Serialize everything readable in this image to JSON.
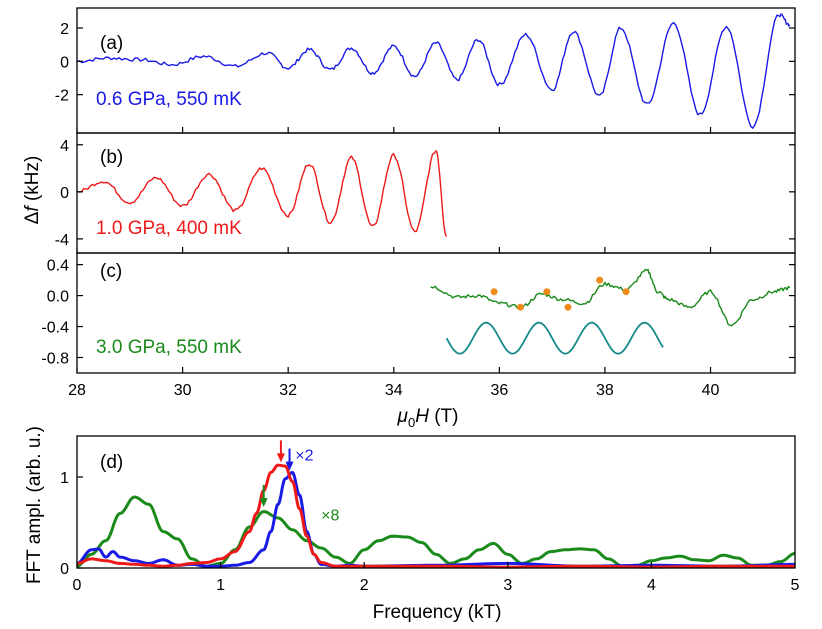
{
  "chart_data": [
    {
      "type": "line",
      "panel_label": "(a)",
      "annotation": "0.6 GPa, 550 mK",
      "color": "#1a1ae6",
      "xlim": [
        28,
        41.6
      ],
      "ylim": [
        -4.3,
        3.2
      ],
      "yticks": [
        2,
        0,
        -2
      ],
      "ytick_labels": [
        "2",
        "0",
        "-2"
      ],
      "series": [
        {
          "x": [
            28.0,
            28.6,
            29.2,
            29.8,
            30.4,
            31.0,
            31.6,
            32.0,
            32.4,
            32.8,
            33.2,
            33.6,
            34.0,
            34.4,
            34.8,
            35.2,
            35.6,
            36.0,
            36.5,
            37.0,
            37.4,
            37.9,
            38.3,
            38.8,
            39.3,
            39.8,
            40.3,
            40.8,
            41.3,
            41.5
          ],
          "y": [
            0.0,
            0.2,
            0.1,
            -0.2,
            0.3,
            -0.3,
            0.5,
            -0.4,
            0.7,
            -0.5,
            0.8,
            -0.7,
            0.9,
            -0.9,
            1.1,
            -1.1,
            1.3,
            -1.4,
            1.6,
            -1.7,
            1.8,
            -2.1,
            2.0,
            -2.6,
            2.3,
            -3.2,
            2.1,
            -3.9,
            2.8,
            2.2
          ]
        }
      ]
    },
    {
      "type": "line",
      "panel_label": "(b)",
      "annotation": "1.0 GPa, 400 mK",
      "color": "#ee1a1a",
      "xlim": [
        28,
        41.6
      ],
      "ylim": [
        -5.2,
        5.0
      ],
      "yticks": [
        4,
        0,
        -4
      ],
      "ytick_labels": [
        "4",
        "0",
        "-4"
      ],
      "series": [
        {
          "x": [
            28.0,
            28.5,
            29.0,
            29.5,
            30.0,
            30.5,
            31.0,
            31.5,
            32.0,
            32.4,
            32.8,
            33.2,
            33.6,
            34.0,
            34.4,
            34.8,
            35.0
          ],
          "y": [
            0.0,
            0.9,
            -0.9,
            1.2,
            -1.2,
            1.5,
            -1.6,
            2.0,
            -2.0,
            2.4,
            -2.6,
            2.9,
            -3.0,
            3.1,
            -3.4,
            3.5,
            -3.8
          ]
        }
      ]
    },
    {
      "type": "line",
      "panel_label": "(c)",
      "annotation": "3.0 GPa, 550 mK",
      "color": "#1a8a1a",
      "xlim": [
        28,
        41.6
      ],
      "ylim": [
        -1.0,
        0.55
      ],
      "yticks": [
        0.4,
        0.0,
        -0.4,
        -0.8
      ],
      "ytick_labels": [
        "0.4",
        "0.0",
        "-0.4",
        "-0.8"
      ],
      "xticks": [
        28,
        30,
        32,
        34,
        36,
        38,
        40
      ],
      "xtick_labels": [
        "28",
        "30",
        "32",
        "34",
        "36",
        "38",
        "40"
      ],
      "series": [
        {
          "x": [
            34.7,
            35.2,
            35.6,
            36.0,
            36.4,
            36.8,
            37.2,
            37.6,
            38.0,
            38.4,
            38.8,
            39.0,
            39.2,
            39.6,
            40.0,
            40.4,
            40.8,
            41.2,
            41.5
          ],
          "y": [
            0.12,
            -0.02,
            0.0,
            -0.1,
            -0.15,
            0.02,
            -0.05,
            -0.1,
            0.15,
            0.08,
            0.32,
            0.05,
            -0.05,
            -0.15,
            0.05,
            -0.38,
            -0.05,
            0.05,
            0.1
          ]
        }
      ],
      "markers": {
        "color": "#f08a1a",
        "x": [
          35.9,
          36.4,
          36.9,
          37.3,
          37.9,
          38.4
        ],
        "y": [
          0.05,
          -0.15,
          0.05,
          -0.15,
          0.2,
          0.05
        ]
      },
      "reference_wave": {
        "color": "#168a8a",
        "x_start": 35.0,
        "x_end": 39.1,
        "period": 1.0,
        "center": -0.55,
        "amplitude": 0.2
      },
      "xlabel_symbol": "μ",
      "xlabel_subscript": "0",
      "xlabel_var": "H",
      "xlabel_unit": " (T)"
    },
    {
      "type": "line",
      "panel_label": "(d)",
      "xlim": [
        0,
        5
      ],
      "ylim": [
        0,
        1.45
      ],
      "xticks": [
        0,
        1,
        2,
        3,
        4,
        5
      ],
      "xtick_labels": [
        "0",
        "1",
        "2",
        "3",
        "4",
        "5"
      ],
      "yticks": [
        0,
        1
      ],
      "ytick_labels": [
        "0",
        "1"
      ],
      "xlabel": "Frequency (kT)",
      "ylabel": "FFT ampl. (arb. u.)",
      "series": [
        {
          "color": "#1a8a1a",
          "x": [
            0.0,
            0.1,
            0.2,
            0.3,
            0.4,
            0.5,
            0.6,
            0.7,
            0.8,
            0.9,
            1.0,
            1.1,
            1.2,
            1.3,
            1.4,
            1.5,
            1.6,
            1.7,
            1.8,
            1.9,
            2.0,
            2.1,
            2.2,
            2.3,
            2.4,
            2.5,
            2.6,
            2.7,
            2.8,
            2.9,
            3.0,
            3.1,
            3.2,
            3.3,
            3.4,
            3.5,
            3.6,
            3.7,
            3.8,
            3.9,
            4.0,
            4.1,
            4.2,
            4.3,
            4.4,
            4.5,
            4.6,
            4.7,
            4.8,
            4.9,
            5.0
          ],
          "y": [
            0.02,
            0.15,
            0.3,
            0.6,
            0.78,
            0.7,
            0.4,
            0.32,
            0.1,
            0.02,
            0.05,
            0.2,
            0.45,
            0.62,
            0.55,
            0.42,
            0.3,
            0.22,
            0.12,
            0.05,
            0.2,
            0.3,
            0.35,
            0.34,
            0.28,
            0.15,
            0.05,
            0.1,
            0.2,
            0.27,
            0.15,
            0.05,
            0.1,
            0.18,
            0.2,
            0.21,
            0.2,
            0.1,
            0.02,
            0.03,
            0.08,
            0.11,
            0.13,
            0.09,
            0.08,
            0.14,
            0.11,
            0.03,
            0.03,
            0.07,
            0.16
          ]
        },
        {
          "color": "#1a1ae6",
          "x": [
            0.0,
            0.1,
            0.15,
            0.2,
            0.25,
            0.3,
            0.4,
            0.5,
            0.6,
            0.7,
            0.8,
            0.9,
            1.0,
            1.1,
            1.2,
            1.3,
            1.35,
            1.4,
            1.45,
            1.5,
            1.55,
            1.6,
            1.65,
            1.7,
            1.8,
            1.9,
            2.0,
            2.5,
            3.0,
            3.5,
            4.0,
            4.5,
            5.0
          ],
          "y": [
            0.05,
            0.2,
            0.21,
            0.12,
            0.18,
            0.12,
            0.08,
            0.05,
            0.09,
            0.03,
            0.04,
            0.02,
            0.02,
            0.03,
            0.06,
            0.2,
            0.4,
            0.7,
            0.98,
            1.05,
            0.8,
            0.4,
            0.15,
            0.04,
            0.02,
            0.03,
            0.02,
            0.03,
            0.05,
            0.02,
            0.03,
            0.02,
            0.04
          ]
        },
        {
          "color": "#ee1a1a",
          "x": [
            0.0,
            0.1,
            0.2,
            0.3,
            0.4,
            0.5,
            0.6,
            0.7,
            0.8,
            0.9,
            1.0,
            1.1,
            1.2,
            1.25,
            1.3,
            1.35,
            1.4,
            1.45,
            1.5,
            1.55,
            1.6,
            1.65,
            1.7,
            1.8,
            1.9,
            2.0,
            2.5,
            3.0,
            3.5,
            4.0,
            4.5,
            5.0
          ],
          "y": [
            0.05,
            0.1,
            0.08,
            0.05,
            0.04,
            0.03,
            0.02,
            0.03,
            0.05,
            0.06,
            0.1,
            0.18,
            0.4,
            0.6,
            0.85,
            1.05,
            1.13,
            1.12,
            0.95,
            0.65,
            0.35,
            0.15,
            0.06,
            0.02,
            0.02,
            0.02,
            0.02,
            0.01,
            0.02,
            0.01,
            0.02,
            0.02
          ]
        }
      ],
      "arrows": [
        {
          "color": "#1a8a1a",
          "x": 1.3,
          "y": 0.67
        },
        {
          "color": "#ee1a1a",
          "x": 1.42,
          "y": 1.16
        },
        {
          "color": "#1a1ae6",
          "x": 1.48,
          "y": 1.07
        }
      ],
      "annotations": [
        {
          "text": "×2",
          "color": "#1a1ae6",
          "x": 1.52,
          "y": 1.18
        },
        {
          "text": "×8",
          "color": "#1a8a1a",
          "x": 1.7,
          "y": 0.52
        }
      ]
    }
  ],
  "shared_ylabel_symbol": "Δ",
  "shared_ylabel_var": "f",
  "shared_ylabel_unit": " (kHz)"
}
